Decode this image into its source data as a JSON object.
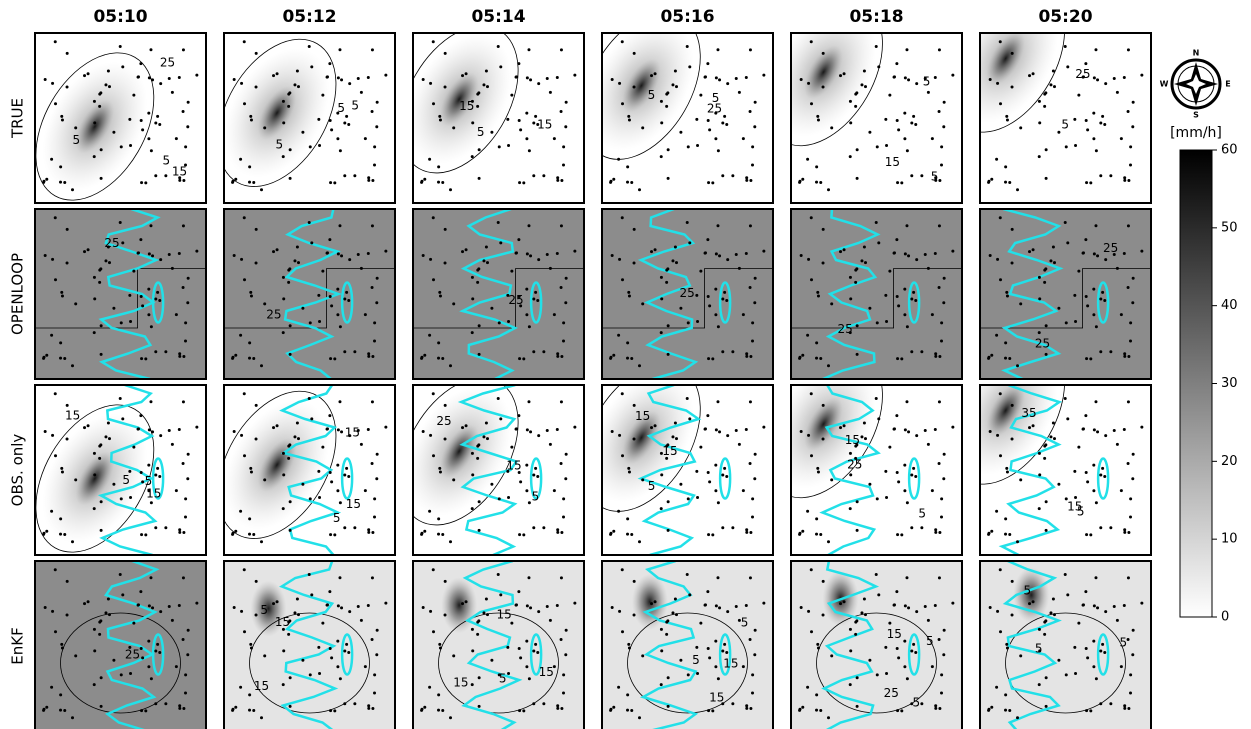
{
  "columns": [
    "05:10",
    "05:12",
    "05:14",
    "05:16",
    "05:18",
    "05:20"
  ],
  "rows": [
    "TRUE",
    "OPENLOOP",
    "OBS. only",
    "EnKF"
  ],
  "compass": {
    "n": "N",
    "e": "E",
    "s": "S",
    "w": "W"
  },
  "colorbar": {
    "label": "[mm/h]",
    "range": [
      0,
      60
    ],
    "ticks": [
      0,
      10,
      20,
      30,
      40,
      50,
      60
    ]
  },
  "contour_labels": [
    [
      [
        "5",
        "25",
        "5",
        "15"
      ],
      [
        "5",
        "5",
        "5"
      ],
      [
        "15",
        "15",
        "5"
      ],
      [
        "5",
        "25",
        "5"
      ],
      [
        "5",
        "15",
        "5"
      ],
      [
        "25",
        "5"
      ]
    ],
    [
      [
        "25"
      ],
      [
        "25"
      ],
      [
        "25"
      ],
      [
        "25"
      ],
      [
        "25"
      ],
      [
        "25",
        "25"
      ]
    ],
    [
      [
        "5",
        "15",
        "5",
        "15"
      ],
      [
        "15",
        "5",
        "15"
      ],
      [
        "25",
        "15",
        "5"
      ],
      [
        "15",
        "5",
        "15"
      ],
      [
        "25",
        "15",
        "5"
      ],
      [
        "35",
        "15",
        "5"
      ]
    ],
    [
      [
        "25"
      ],
      [
        "15",
        "15",
        "5"
      ],
      [
        "15",
        "15",
        "5",
        "15"
      ],
      [
        "15",
        "5",
        "15",
        "5"
      ],
      [
        "25",
        "5",
        "5",
        "15"
      ],
      [
        "5",
        "5",
        "5"
      ]
    ]
  ]
}
